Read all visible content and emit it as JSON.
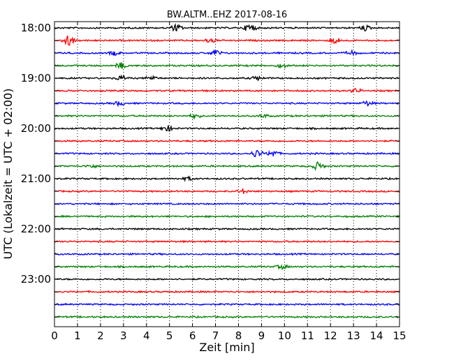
{
  "chart_data": {
    "type": "line",
    "title": "BW.ALTM..EHZ 2017-08-16",
    "xlabel": "Zeit  [min]",
    "ylabel": "UTC (Lokalzeit = UTC + 02:00)",
    "xlim": [
      0,
      15
    ],
    "x_ticks": [
      "0",
      "1",
      "2",
      "3",
      "4",
      "5",
      "6",
      "7",
      "8",
      "9",
      "10",
      "11",
      "12",
      "13",
      "14",
      "15"
    ],
    "y_tick_labels": [
      "18:00",
      "19:00",
      "20:00",
      "21:00",
      "22:00",
      "23:00"
    ],
    "grid": "vertical dotted",
    "color_cycle": [
      "#000000",
      "#ff0000",
      "#0000ff",
      "#008000"
    ],
    "series": [
      {
        "start": "18:00",
        "events": [
          {
            "x": 5.3,
            "amp": 0.7
          },
          {
            "x": 8.5,
            "amp": 0.9
          },
          {
            "x": 13.5,
            "amp": 0.5
          }
        ]
      },
      {
        "start": "18:15",
        "events": [
          {
            "x": 0.6,
            "amp": 1.2
          },
          {
            "x": 6.8,
            "amp": 0.5
          },
          {
            "x": 12.2,
            "amp": 0.6
          }
        ]
      },
      {
        "start": "18:30",
        "events": [
          {
            "x": 2.6,
            "amp": 0.4
          },
          {
            "x": 7.0,
            "amp": 0.6
          },
          {
            "x": 12.9,
            "amp": 0.4
          }
        ]
      },
      {
        "start": "18:45",
        "events": [
          {
            "x": 2.9,
            "amp": 0.6
          },
          {
            "x": 9.9,
            "amp": 0.4
          }
        ]
      },
      {
        "start": "19:00",
        "events": [
          {
            "x": 2.9,
            "amp": 0.5
          },
          {
            "x": 4.2,
            "amp": 0.4
          },
          {
            "x": 8.8,
            "amp": 0.4
          }
        ]
      },
      {
        "start": "19:15",
        "events": [
          {
            "x": 13.1,
            "amp": 0.4
          }
        ]
      },
      {
        "start": "19:30",
        "events": [
          {
            "x": 2.8,
            "amp": 0.4
          },
          {
            "x": 13.6,
            "amp": 0.5
          }
        ]
      },
      {
        "start": "19:45",
        "events": [
          {
            "x": 6.1,
            "amp": 0.4
          },
          {
            "x": 9.1,
            "amp": 0.3
          }
        ]
      },
      {
        "start": "20:00",
        "events": [
          {
            "x": 4.9,
            "amp": 0.6
          }
        ]
      },
      {
        "start": "20:15",
        "events": []
      },
      {
        "start": "20:30",
        "events": [
          {
            "x": 8.8,
            "amp": 0.8
          },
          {
            "x": 9.5,
            "amp": 0.7
          }
        ]
      },
      {
        "start": "20:45",
        "events": [
          {
            "x": 1.6,
            "amp": 0.3
          },
          {
            "x": 11.45,
            "amp": 0.8
          }
        ]
      },
      {
        "start": "21:00",
        "events": [
          {
            "x": 5.8,
            "amp": 0.3
          }
        ]
      },
      {
        "start": "21:15",
        "events": [
          {
            "x": 8.2,
            "amp": 0.4
          }
        ]
      },
      {
        "start": "21:30",
        "events": []
      },
      {
        "start": "21:45",
        "events": []
      },
      {
        "start": "22:00",
        "events": []
      },
      {
        "start": "22:15",
        "events": []
      },
      {
        "start": "22:30",
        "events": []
      },
      {
        "start": "22:45",
        "events": [
          {
            "x": 9.9,
            "amp": 0.4
          }
        ]
      },
      {
        "start": "23:00",
        "events": []
      },
      {
        "start": "23:15",
        "events": []
      },
      {
        "start": "23:30",
        "events": []
      },
      {
        "start": "23:45",
        "events": []
      }
    ]
  }
}
